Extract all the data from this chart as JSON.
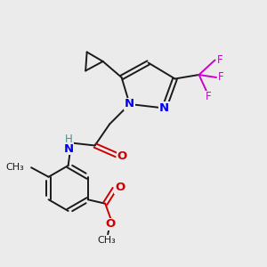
{
  "bg_color": "#ebebeb",
  "bond_color": "#1a1a1a",
  "N_color": "#0000ee",
  "O_color": "#cc0000",
  "F_color": "#cc00cc",
  "lw": 1.4,
  "fs": 8.5,
  "xlim": [
    0,
    10
  ],
  "ylim": [
    0,
    10
  ]
}
